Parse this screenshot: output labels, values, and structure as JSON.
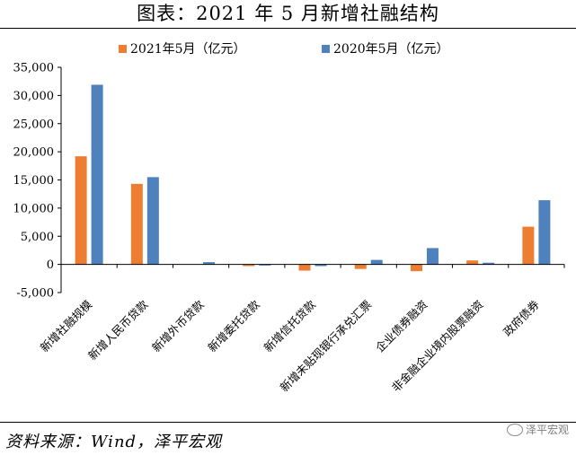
{
  "page": {
    "title": "图表：2021 年 5 月新增社融结构",
    "source": "资料来源：Wind，泽平宏观",
    "watermark": "泽平宏观",
    "watermark_icon": "wechat-icon"
  },
  "colors": {
    "series_2021": "#ED7D31",
    "series_2020": "#4F81BD",
    "axis": "#000000"
  },
  "chart_data": {
    "type": "bar",
    "categories": [
      "新增社融规模",
      "新增人民币贷款",
      "新增外币贷款",
      "新增委托贷款",
      "新增信托贷款",
      "新增未贴现银行承兑汇票",
      "企业债券融资",
      "非金融企业境内股票融资",
      "政府债券"
    ],
    "series": [
      {
        "name": "2021年5月（亿元）",
        "values": [
          19200,
          14300,
          0,
          -300,
          -1100,
          -800,
          -1200,
          700,
          6700
        ]
      },
      {
        "name": "2020年5月（亿元）",
        "values": [
          31900,
          15500,
          400,
          -200,
          -300,
          800,
          2900,
          300,
          11400
        ]
      }
    ],
    "y_ticks": [
      "35,000",
      "30,000",
      "25,000",
      "20,000",
      "15,000",
      "10,000",
      "5,000",
      "0",
      "-5,000"
    ],
    "ylim": [
      -5000,
      35000
    ],
    "legend_position": "top",
    "grid": false
  }
}
